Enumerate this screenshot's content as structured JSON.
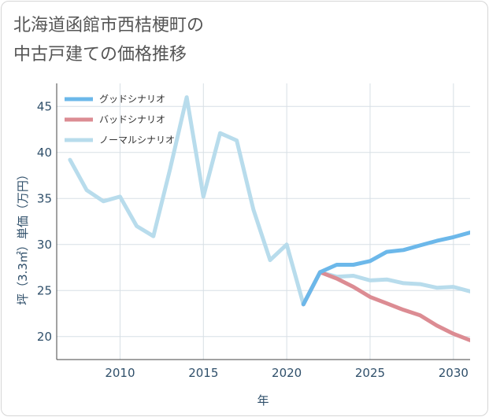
{
  "chart_data": {
    "type": "line",
    "title_lines": [
      "北海道函館市西桔梗町の",
      "中古戸建ての価格推移"
    ],
    "xlabel": "年",
    "ylabel": "坪（3.3㎡）単価（万円）",
    "xlim": [
      2006.2,
      2031
    ],
    "ylim": [
      17.5,
      47.5
    ],
    "x_ticks": [
      2010,
      2015,
      2020,
      2025,
      2030
    ],
    "y_ticks": [
      20,
      25,
      30,
      35,
      40,
      45
    ],
    "grid": true,
    "legend_position": "top-left",
    "series": [
      {
        "name": "グッドシナリオ",
        "color": "#6cb8ea",
        "x": [
          2021,
          2022,
          2023,
          2024,
          2025,
          2026,
          2027,
          2028,
          2029,
          2030,
          2031
        ],
        "values": [
          23.5,
          27.0,
          27.8,
          27.8,
          28.2,
          29.2,
          29.4,
          29.9,
          30.4,
          30.8,
          31.3
        ]
      },
      {
        "name": "バッドシナリオ",
        "color": "#dc8c93",
        "x": [
          2021,
          2022,
          2023,
          2024,
          2025,
          2026,
          2027,
          2028,
          2029,
          2030,
          2031
        ],
        "values": [
          23.5,
          27.0,
          26.3,
          25.4,
          24.3,
          23.6,
          22.9,
          22.3,
          21.2,
          20.3,
          19.6
        ]
      },
      {
        "name": "ノーマルシナリオ",
        "color": "#b8dcec",
        "x": [
          2007,
          2008,
          2009,
          2010,
          2011,
          2012,
          2013,
          2014,
          2015,
          2016,
          2017,
          2018,
          2019,
          2020,
          2021,
          2022,
          2023,
          2024,
          2025,
          2026,
          2027,
          2028,
          2029,
          2030,
          2031
        ],
        "values": [
          39.2,
          35.9,
          34.7,
          35.2,
          32.0,
          30.9,
          38.2,
          46.0,
          35.2,
          42.1,
          41.3,
          33.8,
          28.3,
          30.0,
          23.5,
          27.0,
          26.5,
          26.6,
          26.1,
          26.2,
          25.8,
          25.7,
          25.3,
          25.4,
          24.9
        ]
      }
    ]
  }
}
